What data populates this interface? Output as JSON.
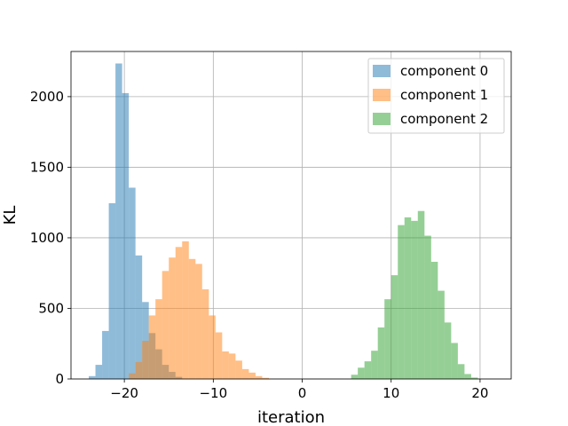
{
  "chart_data": {
    "type": "histogram",
    "title": "",
    "xlabel": "iteration",
    "ylabel": "KL",
    "xlim": [
      -26,
      23.5
    ],
    "ylim": [
      0,
      2320
    ],
    "xticks": [
      -20,
      -10,
      0,
      10,
      20
    ],
    "xtick_labels": [
      "−20",
      "−10",
      "0",
      "10",
      "20"
    ],
    "yticks": [
      0,
      500,
      1000,
      1500,
      2000
    ],
    "ytick_labels": [
      "0",
      "500",
      "1000",
      "1500",
      "2000"
    ],
    "grid": true,
    "legend_position": "top-right",
    "bin_width": 0.75,
    "series": [
      {
        "name": "component 0",
        "color": "#1f77b4",
        "alpha": 0.5,
        "bins": [
          {
            "x0": -24.0,
            "count": 20
          },
          {
            "x0": -23.25,
            "count": 100
          },
          {
            "x0": -22.5,
            "count": 340
          },
          {
            "x0": -21.75,
            "count": 1245
          },
          {
            "x0": -21.0,
            "count": 2235
          },
          {
            "x0": -20.25,
            "count": 2025
          },
          {
            "x0": -19.5,
            "count": 1355
          },
          {
            "x0": -18.75,
            "count": 875
          },
          {
            "x0": -18.0,
            "count": 545
          },
          {
            "x0": -17.25,
            "count": 325
          },
          {
            "x0": -16.5,
            "count": 210
          },
          {
            "x0": -15.75,
            "count": 100
          },
          {
            "x0": -15.0,
            "count": 50
          },
          {
            "x0": -14.25,
            "count": 15
          }
        ]
      },
      {
        "name": "component 1",
        "color": "#ff7f0e",
        "alpha": 0.5,
        "bins": [
          {
            "x0": -19.5,
            "count": 40
          },
          {
            "x0": -18.75,
            "count": 120
          },
          {
            "x0": -18.0,
            "count": 270
          },
          {
            "x0": -17.25,
            "count": 450
          },
          {
            "x0": -16.5,
            "count": 565
          },
          {
            "x0": -15.75,
            "count": 765
          },
          {
            "x0": -15.0,
            "count": 860
          },
          {
            "x0": -14.25,
            "count": 935
          },
          {
            "x0": -13.5,
            "count": 975
          },
          {
            "x0": -12.75,
            "count": 850
          },
          {
            "x0": -12.0,
            "count": 815
          },
          {
            "x0": -11.25,
            "count": 635
          },
          {
            "x0": -10.5,
            "count": 450
          },
          {
            "x0": -9.75,
            "count": 330
          },
          {
            "x0": -9.0,
            "count": 195
          },
          {
            "x0": -8.25,
            "count": 180
          },
          {
            "x0": -7.5,
            "count": 130
          },
          {
            "x0": -6.75,
            "count": 70
          },
          {
            "x0": -6.0,
            "count": 45
          },
          {
            "x0": -5.25,
            "count": 20
          },
          {
            "x0": -4.5,
            "count": 8
          }
        ]
      },
      {
        "name": "component 2",
        "color": "#2ca02c",
        "alpha": 0.5,
        "bins": [
          {
            "x0": 5.5,
            "count": 30
          },
          {
            "x0": 6.25,
            "count": 80
          },
          {
            "x0": 7.0,
            "count": 125
          },
          {
            "x0": 7.75,
            "count": 200
          },
          {
            "x0": 8.5,
            "count": 365
          },
          {
            "x0": 9.25,
            "count": 565
          },
          {
            "x0": 10.0,
            "count": 735
          },
          {
            "x0": 10.75,
            "count": 1090
          },
          {
            "x0": 11.5,
            "count": 1145
          },
          {
            "x0": 12.25,
            "count": 1120
          },
          {
            "x0": 13.0,
            "count": 1190
          },
          {
            "x0": 13.75,
            "count": 1015
          },
          {
            "x0": 14.5,
            "count": 830
          },
          {
            "x0": 15.25,
            "count": 625
          },
          {
            "x0": 16.0,
            "count": 400
          },
          {
            "x0": 16.75,
            "count": 255
          },
          {
            "x0": 17.5,
            "count": 105
          },
          {
            "x0": 18.25,
            "count": 35
          },
          {
            "x0": 19.0,
            "count": 10
          }
        ]
      }
    ]
  }
}
